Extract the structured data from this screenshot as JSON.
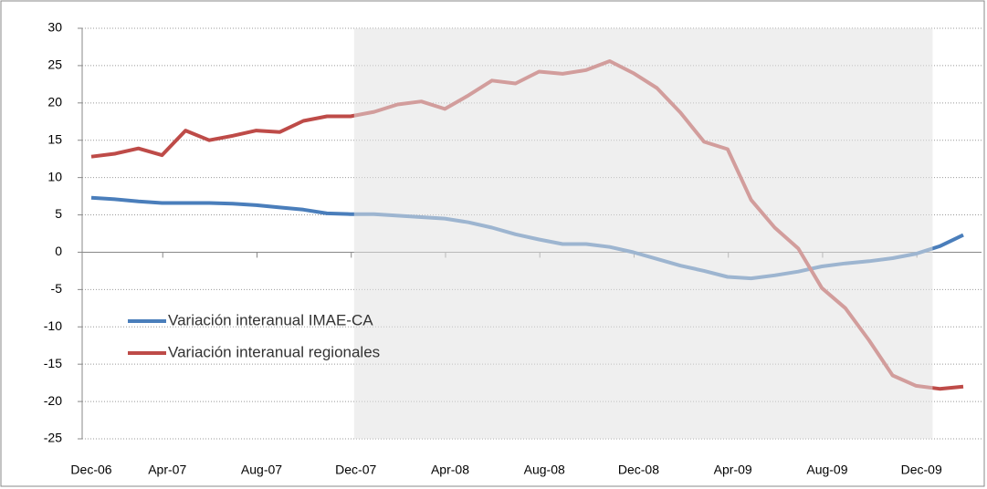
{
  "chart_data": {
    "type": "line",
    "categories": [
      "Dec-06",
      null,
      null,
      null,
      "Apr-07",
      null,
      null,
      null,
      "Aug-07",
      null,
      null,
      null,
      "Dec-07",
      null,
      null,
      null,
      "Apr-08",
      null,
      null,
      null,
      "Aug-08",
      null,
      null,
      null,
      "Dec-08",
      null,
      null,
      null,
      "Apr-09",
      null,
      null,
      null,
      "Aug-09",
      null,
      null,
      null,
      "Dec-09",
      null
    ],
    "series": [
      {
        "name": "Variación interanual IMAE-CA",
        "color": "#4a7ebb",
        "values": [
          7.3,
          7.1,
          6.8,
          6.6,
          6.6,
          6.6,
          6.5,
          6.3,
          6.0,
          5.7,
          5.2,
          5.1,
          5.1,
          4.9,
          4.7,
          4.5,
          4.0,
          3.3,
          2.4,
          1.7,
          1.1,
          1.1,
          0.7,
          0.0,
          -0.9,
          -1.8,
          -2.5,
          -3.3,
          -3.5,
          -3.1,
          -2.6,
          -1.9,
          -1.5,
          -1.2,
          -0.8,
          -0.2,
          0.8,
          2.3
        ]
      },
      {
        "name": "Variación interanual regionales",
        "color": "#be4b48",
        "values": [
          12.8,
          13.2,
          13.9,
          13.0,
          16.3,
          15.0,
          15.6,
          16.3,
          16.1,
          17.6,
          18.2,
          18.2,
          18.8,
          19.8,
          20.2,
          19.2,
          21.0,
          23.0,
          22.6,
          24.2,
          23.9,
          24.4,
          25.6,
          24.0,
          22.0,
          18.7,
          14.8,
          13.8,
          7.0,
          3.3,
          0.5,
          -4.8,
          -7.5,
          -11.8,
          -16.5,
          -17.9,
          -18.3,
          -18.0
        ]
      }
    ],
    "ylim": [
      -25,
      30
    ],
    "yticks": [
      -25,
      -20,
      -15,
      -10,
      -5,
      0,
      5,
      10,
      15,
      20,
      25,
      30
    ],
    "grid": true
  }
}
